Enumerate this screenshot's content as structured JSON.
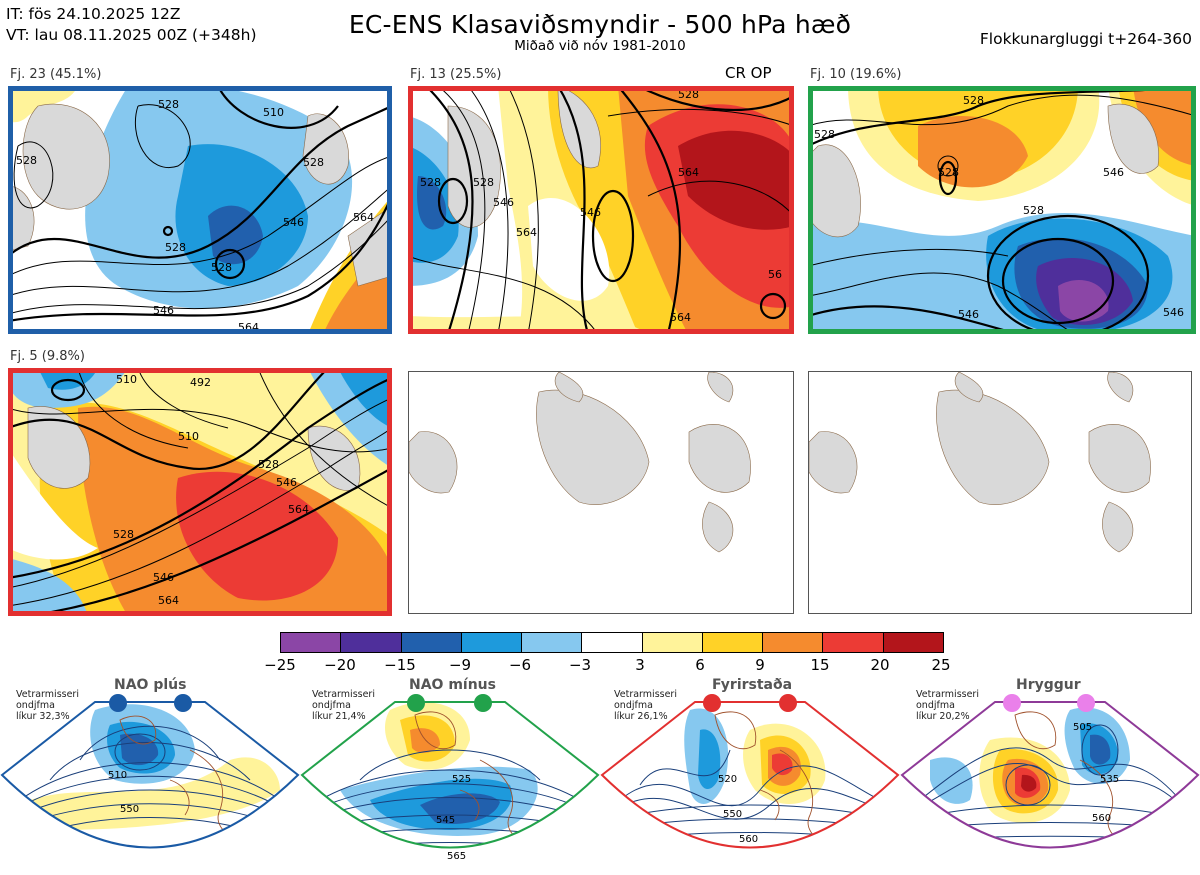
{
  "header": {
    "it_line": "IT: fös 24.10.2025 12Z",
    "vt_line": "VT: lau 08.11.2025 00Z  (+348h)",
    "title": "EC-ENS Klasaviðsmyndir - 500 hPa hæð",
    "subtitle": "Miðað við nóv 1981-2010",
    "window": "Flokkunargluggi t+264-360"
  },
  "panels": [
    {
      "label": "Fj. 23 (45.1%)",
      "border_color": "#1f5fa8",
      "contours": [
        "528",
        "510",
        "528",
        "528",
        "546",
        "528",
        "546",
        "564",
        "528",
        "564"
      ]
    },
    {
      "label": "Fj. 13 (25.5%)",
      "border_color": "#e23030",
      "tag": "CR OP",
      "contours": [
        "528",
        "528",
        "546",
        "564",
        "546",
        "564",
        "564",
        "56",
        "528"
      ]
    },
    {
      "label": "Fj. 10 (19.6%)",
      "border_color": "#22a24b",
      "contours": [
        "528",
        "528",
        "546",
        "528",
        "528",
        "546",
        "546"
      ]
    },
    {
      "label": "Fj. 5 (9.8%)",
      "border_color": "#e23030",
      "contours": [
        "492",
        "510",
        "510",
        "528",
        "546",
        "564",
        "528",
        "546",
        "564"
      ]
    }
  ],
  "colorbar": {
    "colors": [
      "#8b46a6",
      "#4f2f9b",
      "#2160ad",
      "#1e9adc",
      "#86c8ef",
      "#ffffff",
      "#fff39a",
      "#ffd227",
      "#f58b2e",
      "#ec3b35",
      "#b3151b"
    ],
    "ticks": [
      "−25",
      "−20",
      "−15",
      "−9",
      "−6",
      "−3",
      "3",
      "6",
      "9",
      "15",
      "20",
      "25"
    ]
  },
  "regimes": [
    {
      "title": "NAO plús",
      "note": [
        "Vetrarmisseri",
        "ondjfma",
        "líkur 32,3%"
      ],
      "color": "#1a5aa5",
      "contours": [
        "510",
        "550"
      ]
    },
    {
      "title": "NAO mínus",
      "note": [
        "Vetrarmisseri",
        "ondjfma",
        "líkur 21,4%"
      ],
      "color": "#22a24b",
      "contours": [
        "525",
        "545",
        "565"
      ]
    },
    {
      "title": "Fyrirstaða",
      "note": [
        "Vetrarmisseri",
        "ondjfma",
        "líkur 26,1%"
      ],
      "color": "#e23030",
      "contours": [
        "520",
        "550",
        "560"
      ]
    },
    {
      "title": "Hryggur",
      "note": [
        "Vetrarmisseri",
        "ondjfma",
        "líkur 20,2%"
      ],
      "color": "#8e3a98",
      "contours": [
        "505",
        "535",
        "560"
      ]
    }
  ]
}
